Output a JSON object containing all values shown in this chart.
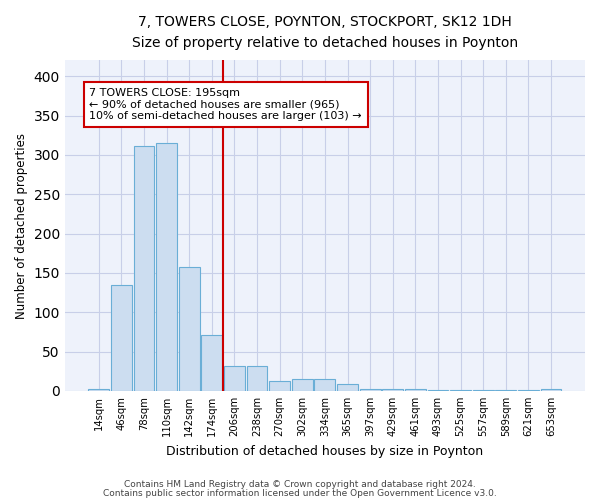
{
  "title1": "7, TOWERS CLOSE, POYNTON, STOCKPORT, SK12 1DH",
  "title2": "Size of property relative to detached houses in Poynton",
  "xlabel": "Distribution of detached houses by size in Poynton",
  "ylabel": "Number of detached properties",
  "categories": [
    "14sqm",
    "46sqm",
    "78sqm",
    "110sqm",
    "142sqm",
    "174sqm",
    "206sqm",
    "238sqm",
    "270sqm",
    "302sqm",
    "334sqm",
    "365sqm",
    "397sqm",
    "429sqm",
    "461sqm",
    "493sqm",
    "525sqm",
    "557sqm",
    "589sqm",
    "621sqm",
    "653sqm"
  ],
  "values": [
    3,
    135,
    311,
    315,
    157,
    71,
    32,
    32,
    13,
    15,
    15,
    9,
    3,
    2,
    2,
    1,
    1,
    1,
    1,
    1,
    2
  ],
  "bar_color": "#ccddf0",
  "bar_edge_color": "#6aaed6",
  "property_line_x": 5.5,
  "property_line_color": "#cc0000",
  "annotation_line1": "7 TOWERS CLOSE: 195sqm",
  "annotation_line2": "← 90% of detached houses are smaller (965)",
  "annotation_line3": "10% of semi-detached houses are larger (103) →",
  "annotation_box_color": "#ffffff",
  "annotation_box_edge": "#cc0000",
  "ylim": [
    0,
    420
  ],
  "yticks": [
    0,
    50,
    100,
    150,
    200,
    250,
    300,
    350,
    400
  ],
  "bg_color": "#eef2fb",
  "grid_color": "#c8cfe8",
  "footer1": "Contains HM Land Registry data © Crown copyright and database right 2024.",
  "footer2": "Contains public sector information licensed under the Open Government Licence v3.0."
}
